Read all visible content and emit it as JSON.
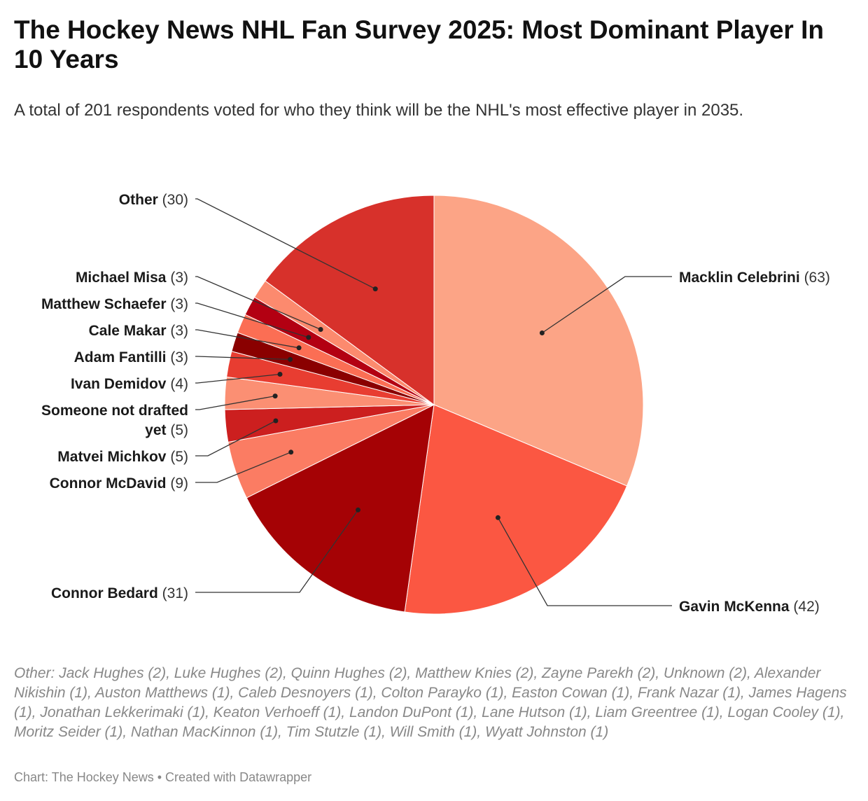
{
  "header": {
    "title": "The Hockey News NHL Fan Survey 2025: Most Dominant Player In 10 Years",
    "subtitle": "A total of 201 respondents voted for who they think will be the NHL's most effective player in 2035."
  },
  "chart_data": {
    "type": "pie",
    "total": 201,
    "slices": [
      {
        "label": "Macklin Celebrini",
        "value": 63,
        "color": "#fca486"
      },
      {
        "label": "Gavin McKenna",
        "value": 42,
        "color": "#fb5742"
      },
      {
        "label": "Connor Bedard",
        "value": 31,
        "color": "#a50205"
      },
      {
        "label": "Connor McDavid",
        "value": 9,
        "color": "#fb7c63"
      },
      {
        "label": "Matvei Michkov",
        "value": 5,
        "color": "#cc1f1f"
      },
      {
        "label": "Someone not drafted yet",
        "value": 5,
        "color": "#fb8f73"
      },
      {
        "label": "Ivan Demidov",
        "value": 4,
        "color": "#e83d31"
      },
      {
        "label": "Adam Fantilli",
        "value": 3,
        "color": "#8a0000"
      },
      {
        "label": "Cale Makar",
        "value": 3,
        "color": "#fb6e54"
      },
      {
        "label": "Matthew Schaefer",
        "value": 3,
        "color": "#b30012"
      },
      {
        "label": "Michael Misa",
        "value": 3,
        "color": "#fc8a6e"
      },
      {
        "label": "Other",
        "value": 30,
        "color": "#d7312b"
      }
    ]
  },
  "notes": "Other: Jack Hughes (2), Luke Hughes (2), Quinn Hughes (2), Matthew Knies (2), Zayne Parekh (2), Unknown (2), Alexander Nikishin (1), Auston Matthews (1), Caleb Desnoyers (1), Colton Parayko (1), Easton Cowan (1), Frank Nazar (1), James Hagens (1), Jonathan Lekkerimaki (1), Keaton Verhoeff (1), Landon DuPont (1), Lane Hutson (1), Liam Greentree (1), Logan Cooley (1), Moritz Seider (1), Nathan MacKinnon (1), Tim Stutzle (1), Will Smith (1), Wyatt Johnston (1)",
  "source": "Chart: The Hockey News • Created with Datawrapper"
}
